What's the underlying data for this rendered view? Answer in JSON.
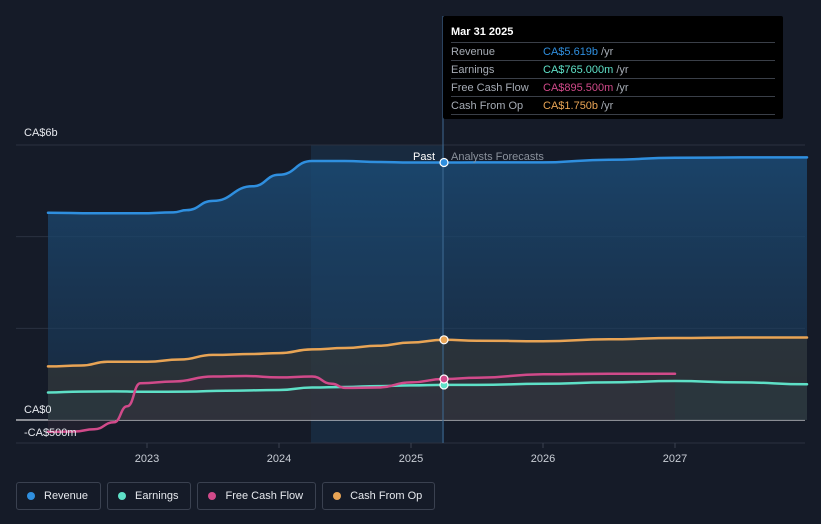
{
  "chart_data": {
    "type": "line",
    "y_tick_labels": [
      "CA$6b",
      "CA$0",
      "-CA$500m"
    ],
    "x_ticks": [
      "2023",
      "2024",
      "2025",
      "2026",
      "2027"
    ],
    "region_labels": {
      "past": "Past",
      "forecast": "Analysts Forecasts"
    },
    "ylim": [
      -500,
      6000
    ],
    "series": [
      {
        "name": "Revenue",
        "color": "#2f8fdf",
        "points": [
          [
            2022.25,
            4520
          ],
          [
            2022.6,
            4510
          ],
          [
            2022.95,
            4510
          ],
          [
            2023.2,
            4530
          ],
          [
            2023.3,
            4580
          ],
          [
            2023.5,
            4780
          ],
          [
            2023.8,
            5100
          ],
          [
            2024.0,
            5350
          ],
          [
            2024.25,
            5650
          ],
          [
            2024.5,
            5650
          ],
          [
            2024.75,
            5630
          ],
          [
            2025.0,
            5619
          ],
          [
            2025.25,
            5619
          ],
          [
            2025.5,
            5620
          ],
          [
            2026.0,
            5620
          ],
          [
            2026.5,
            5680
          ],
          [
            2027.0,
            5720
          ],
          [
            2027.5,
            5730
          ],
          [
            2028.0,
            5730
          ]
        ]
      },
      {
        "name": "Earnings",
        "color": "#5ee0c7",
        "points": [
          [
            2022.25,
            600
          ],
          [
            2022.5,
            620
          ],
          [
            2022.75,
            625
          ],
          [
            2023.0,
            615
          ],
          [
            2023.3,
            620
          ],
          [
            2023.6,
            640
          ],
          [
            2024.0,
            655
          ],
          [
            2024.25,
            710
          ],
          [
            2024.5,
            720
          ],
          [
            2024.75,
            740
          ],
          [
            2025.0,
            755
          ],
          [
            2025.25,
            765
          ],
          [
            2025.5,
            765
          ],
          [
            2026.0,
            790
          ],
          [
            2026.5,
            820
          ],
          [
            2027.0,
            850
          ],
          [
            2027.5,
            820
          ],
          [
            2028.0,
            780
          ]
        ]
      },
      {
        "name": "Free Cash Flow",
        "color": "#d14a8a",
        "points": [
          [
            2022.25,
            -260
          ],
          [
            2022.45,
            -250
          ],
          [
            2022.6,
            -200
          ],
          [
            2022.75,
            -50
          ],
          [
            2022.85,
            300
          ],
          [
            2022.95,
            800
          ],
          [
            2023.2,
            840
          ],
          [
            2023.5,
            950
          ],
          [
            2023.75,
            960
          ],
          [
            2024.0,
            930
          ],
          [
            2024.25,
            950
          ],
          [
            2024.4,
            790
          ],
          [
            2024.5,
            700
          ],
          [
            2024.75,
            710
          ],
          [
            2025.0,
            820
          ],
          [
            2025.25,
            895
          ],
          [
            2025.5,
            920
          ],
          [
            2026.0,
            1000
          ],
          [
            2026.5,
            1010
          ],
          [
            2027.0,
            1010
          ]
        ]
      },
      {
        "name": "Cash From Op",
        "color": "#e8a455",
        "points": [
          [
            2022.25,
            1170
          ],
          [
            2022.5,
            1190
          ],
          [
            2022.7,
            1270
          ],
          [
            2023.0,
            1270
          ],
          [
            2023.25,
            1320
          ],
          [
            2023.5,
            1420
          ],
          [
            2023.8,
            1440
          ],
          [
            2024.0,
            1460
          ],
          [
            2024.25,
            1540
          ],
          [
            2024.5,
            1570
          ],
          [
            2024.75,
            1620
          ],
          [
            2025.0,
            1690
          ],
          [
            2025.25,
            1750
          ],
          [
            2025.5,
            1730
          ],
          [
            2026.0,
            1720
          ],
          [
            2026.5,
            1760
          ],
          [
            2027.0,
            1790
          ],
          [
            2027.5,
            1800
          ],
          [
            2028.0,
            1800
          ]
        ]
      }
    ],
    "highlight_x": 2025.25,
    "grid": true
  },
  "tooltip": {
    "date": "Mar 31 2025",
    "rows": [
      {
        "label": "Revenue",
        "value": "CA$5.619b",
        "unit": "/yr",
        "color": "#2f8fdf"
      },
      {
        "label": "Earnings",
        "value": "CA$765.000m",
        "unit": "/yr",
        "color": "#5ee0c7"
      },
      {
        "label": "Free Cash Flow",
        "value": "CA$895.500m",
        "unit": "/yr",
        "color": "#d14a8a"
      },
      {
        "label": "Cash From Op",
        "value": "CA$1.750b",
        "unit": "/yr",
        "color": "#e8a455"
      }
    ]
  },
  "legend": [
    {
      "label": "Revenue",
      "color": "#2f8fdf"
    },
    {
      "label": "Earnings",
      "color": "#5ee0c7"
    },
    {
      "label": "Free Cash Flow",
      "color": "#d14a8a"
    },
    {
      "label": "Cash From Op",
      "color": "#e8a455"
    }
  ]
}
